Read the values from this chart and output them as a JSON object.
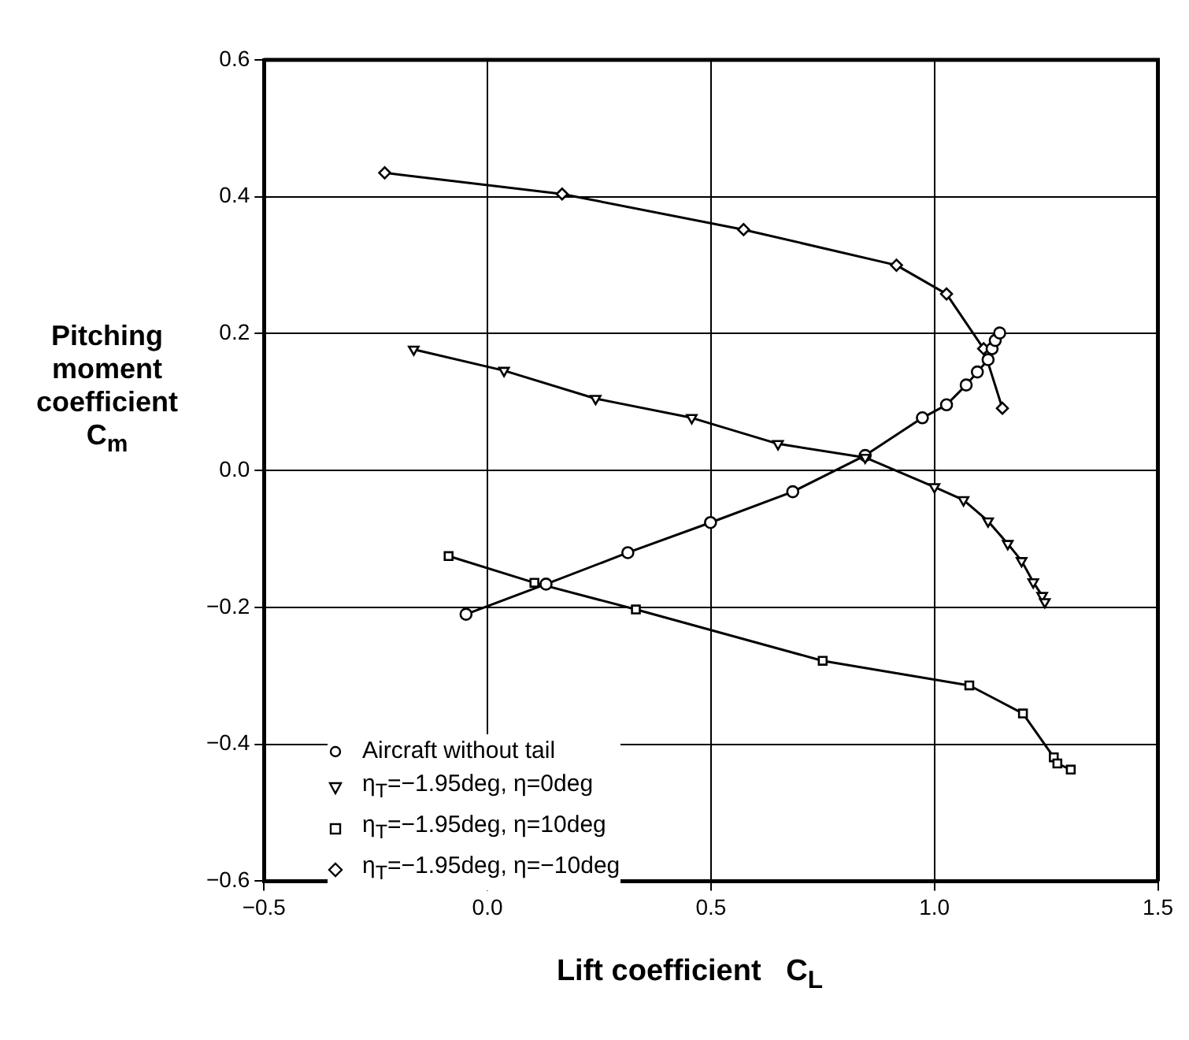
{
  "chart_data": {
    "type": "line",
    "xlabel": "Lift coefficient   C$_{L}$",
    "ylabel": "Pitching moment coefficient C$_{m}$",
    "xlim": [
      -0.5,
      1.5
    ],
    "ylim": [
      -0.6,
      0.6
    ],
    "xticks": [
      {
        "value": -0.5,
        "label": "−0.5"
      },
      {
        "value": 0,
        "label": "0.0"
      },
      {
        "value": 0.5,
        "label": "0.5"
      },
      {
        "value": 1,
        "label": "1.0"
      },
      {
        "value": 1.5,
        "label": "1.5"
      }
    ],
    "yticks": [
      {
        "value": -0.6,
        "label": "−0.6"
      },
      {
        "value": -0.4,
        "label": "−0.4"
      },
      {
        "value": -0.2,
        "label": "−0.2"
      },
      {
        "value": 0,
        "label": "0.0"
      },
      {
        "value": 0.2,
        "label": "0.2"
      },
      {
        "value": 0.4,
        "label": "0.4"
      },
      {
        "value": 0.6,
        "label": "0.6"
      }
    ],
    "grid": true,
    "legend": "bottom left",
    "series": [
      {
        "name": "Aircraft without tail",
        "color": "#000000",
        "marker": "circle",
        "x": [
          -0.048,
          0.131,
          0.314,
          0.499,
          0.683,
          0.845,
          0.973,
          1.027,
          1.071,
          1.096,
          1.12,
          1.129,
          1.136,
          1.146
        ],
        "values": [
          -0.21,
          -0.166,
          -0.12,
          -0.076,
          -0.031,
          0.022,
          0.077,
          0.096,
          0.125,
          0.144,
          0.162,
          0.178,
          0.19,
          0.201
        ]
      },
      {
        "name": "η$_{T}$=−1.95deg, η=0deg",
        "color": "#000000",
        "marker": "triangle",
        "x": [
          -0.165,
          0.037,
          0.242,
          0.457,
          0.65,
          0.845,
          1.0,
          1.065,
          1.12,
          1.164,
          1.195,
          1.221,
          1.241,
          1.247
        ],
        "values": [
          0.177,
          0.146,
          0.105,
          0.077,
          0.039,
          0.019,
          -0.024,
          -0.043,
          -0.074,
          -0.107,
          -0.132,
          -0.163,
          -0.183,
          -0.192
        ]
      },
      {
        "name": "η$_{T}$=−1.95deg, η=10deg",
        "color": "#000000",
        "marker": "square",
        "x": [
          -0.087,
          0.105,
          0.332,
          0.75,
          1.078,
          1.198,
          1.267,
          1.275,
          1.305
        ],
        "values": [
          -0.125,
          -0.164,
          -0.203,
          -0.278,
          -0.314,
          -0.355,
          -0.419,
          -0.428,
          -0.437
        ]
      },
      {
        "name": "η$_{T}$=−1.95deg, η=−10deg",
        "color": "#000000",
        "marker": "diamond",
        "x": [
          -0.23,
          0.167,
          0.573,
          0.915,
          1.027,
          1.11,
          1.152
        ],
        "values": [
          0.435,
          0.404,
          0.352,
          0.3,
          0.258,
          0.178,
          0.091
        ]
      }
    ]
  }
}
